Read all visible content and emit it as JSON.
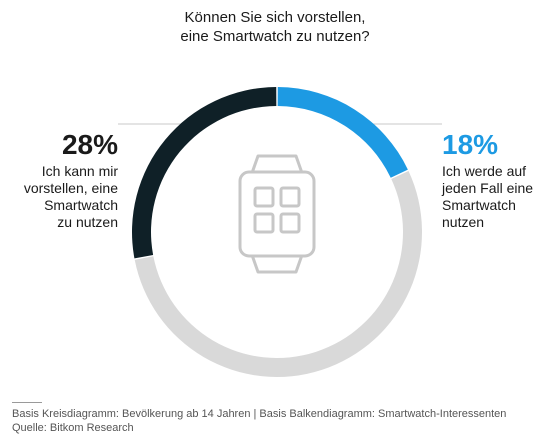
{
  "title": {
    "line1": "Können Sie sich vorstellen,",
    "line2": "eine Smartwatch zu nutzen?"
  },
  "chart_data": {
    "type": "pie",
    "donut": true,
    "slices": [
      {
        "label": "Ich werde auf jeden Fall eine Smartwatch nutzen",
        "value": 18,
        "color": "#1d9ae3"
      },
      {
        "label": "Rest",
        "value": 54,
        "color": "#d9d9d9"
      },
      {
        "label": "Ich kann mir vorstellen, eine Smartwatch zu nutzen",
        "value": 28,
        "color": "#0f2027"
      }
    ],
    "center_icon": "smartwatch-icon"
  },
  "left_callout": {
    "pct": "28%",
    "lines": [
      "Ich kann mir",
      "vorstellen, eine",
      "Smartwatch",
      "zu nutzen"
    ]
  },
  "right_callout": {
    "pct": "18%",
    "lines": [
      "Ich werde auf",
      "jeden Fall eine",
      "Smartwatch",
      "nutzen"
    ]
  },
  "footer": {
    "line1": "Basis Kreisdiagramm: Bevölkerung ab 14 Jahren | Basis Balkendiagramm: Smartwatch-Interessenten",
    "line2": "Quelle: Bitkom Research"
  }
}
